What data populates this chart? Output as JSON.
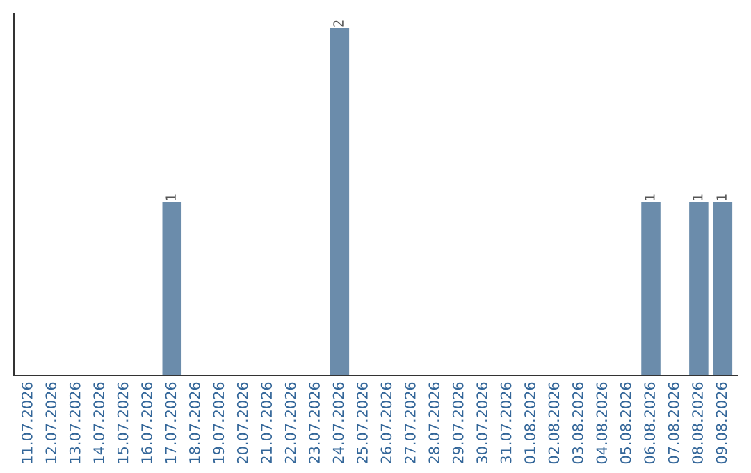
{
  "chart_data": {
    "type": "bar",
    "categories": [
      "11.07.2026",
      "12.07.2026",
      "13.07.2026",
      "14.07.2026",
      "15.07.2026",
      "16.07.2026",
      "17.07.2026",
      "18.07.2026",
      "19.07.2026",
      "20.07.2026",
      "21.07.2026",
      "22.07.2026",
      "23.07.2026",
      "24.07.2026",
      "25.07.2026",
      "26.07.2026",
      "27.07.2026",
      "28.07.2026",
      "29.07.2026",
      "30.07.2026",
      "31.07.2026",
      "01.08.2026",
      "02.08.2026",
      "03.08.2026",
      "04.08.2026",
      "05.08.2026",
      "06.08.2026",
      "07.08.2026",
      "08.08.2026",
      "09.08.2026"
    ],
    "values": [
      0,
      0,
      0,
      0,
      0,
      0,
      1,
      0,
      0,
      0,
      0,
      0,
      0,
      2,
      0,
      0,
      0,
      0,
      0,
      0,
      0,
      0,
      0,
      0,
      0,
      0,
      1,
      0,
      1,
      1
    ],
    "value_labels": [
      null,
      null,
      null,
      null,
      null,
      null,
      "1",
      null,
      null,
      null,
      null,
      null,
      null,
      "2",
      null,
      null,
      null,
      null,
      null,
      null,
      null,
      null,
      null,
      null,
      null,
      null,
      "1",
      null,
      "1",
      "1"
    ],
    "color": "#6b8cab",
    "tick_labels": "x",
    "grid": false
  }
}
